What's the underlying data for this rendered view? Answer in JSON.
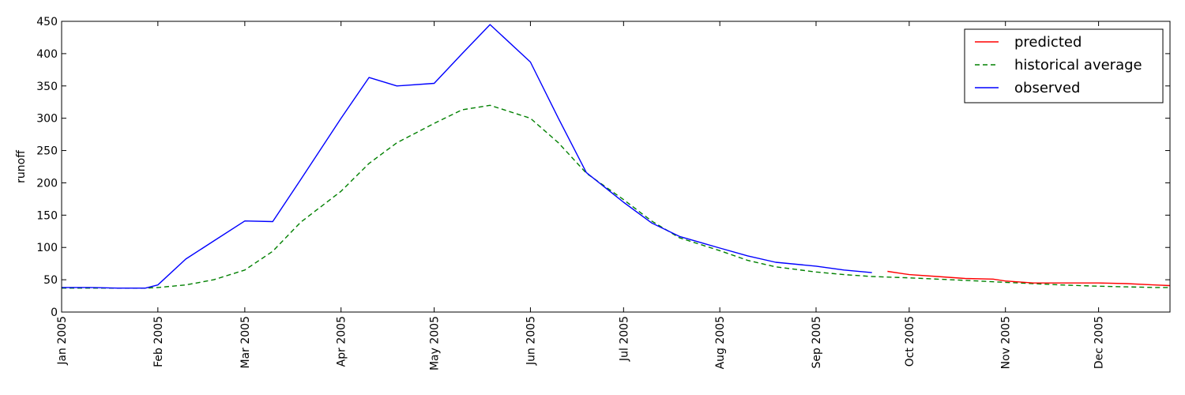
{
  "chart_data": {
    "type": "line",
    "title": "",
    "xlabel": "",
    "ylabel": "runoff",
    "ylim": [
      0,
      450
    ],
    "xlim": [
      "2005-01-01",
      "2005-12-24"
    ],
    "y_ticks": [
      0,
      50,
      100,
      150,
      200,
      250,
      300,
      350,
      400,
      450
    ],
    "x_ticks": [
      {
        "date": "2005-01-01",
        "label": "Jan 2005"
      },
      {
        "date": "2005-02-01",
        "label": "Feb 2005"
      },
      {
        "date": "2005-03-01",
        "label": "Mar 2005"
      },
      {
        "date": "2005-04-01",
        "label": "Apr 2005"
      },
      {
        "date": "2005-05-01",
        "label": "May 2005"
      },
      {
        "date": "2005-06-01",
        "label": "Jun 2005"
      },
      {
        "date": "2005-07-01",
        "label": "Jul 2005"
      },
      {
        "date": "2005-08-01",
        "label": "Aug 2005"
      },
      {
        "date": "2005-09-01",
        "label": "Sep 2005"
      },
      {
        "date": "2005-10-01",
        "label": "Oct 2005"
      },
      {
        "date": "2005-11-01",
        "label": "Nov 2005"
      },
      {
        "date": "2005-12-01",
        "label": "Dec 2005"
      }
    ],
    "x_label_rotation": "vertical",
    "grid": false,
    "legend_position": "top-right",
    "series": [
      {
        "name": "predicted",
        "color": "#ff0000",
        "style": "solid",
        "points": [
          [
            "2005-09-24",
            63
          ],
          [
            "2005-10-01",
            58
          ],
          [
            "2005-10-10",
            55
          ],
          [
            "2005-10-19",
            52
          ],
          [
            "2005-10-28",
            51
          ],
          [
            "2005-11-01",
            48
          ],
          [
            "2005-11-10",
            45
          ],
          [
            "2005-11-19",
            45
          ],
          [
            "2005-11-28",
            45
          ],
          [
            "2005-12-01",
            45
          ],
          [
            "2005-12-10",
            44
          ],
          [
            "2005-12-19",
            42
          ],
          [
            "2005-12-24",
            41
          ]
        ]
      },
      {
        "name": "historical average",
        "color": "#008000",
        "style": "dashed",
        "points": [
          [
            "2005-01-01",
            37
          ],
          [
            "2005-01-10",
            37
          ],
          [
            "2005-01-19",
            37
          ],
          [
            "2005-01-28",
            37
          ],
          [
            "2005-02-01",
            38
          ],
          [
            "2005-02-10",
            42
          ],
          [
            "2005-02-19",
            50
          ],
          [
            "2005-03-01",
            65
          ],
          [
            "2005-03-10",
            94
          ],
          [
            "2005-03-19",
            139
          ],
          [
            "2005-04-01",
            187
          ],
          [
            "2005-04-10",
            230
          ],
          [
            "2005-04-19",
            262
          ],
          [
            "2005-05-01",
            292
          ],
          [
            "2005-05-10",
            313
          ],
          [
            "2005-05-19",
            320
          ],
          [
            "2005-06-01",
            300
          ],
          [
            "2005-06-10",
            262
          ],
          [
            "2005-06-19",
            215
          ],
          [
            "2005-07-01",
            174
          ],
          [
            "2005-07-10",
            141
          ],
          [
            "2005-07-19",
            115
          ],
          [
            "2005-08-01",
            95
          ],
          [
            "2005-08-10",
            80
          ],
          [
            "2005-08-19",
            70
          ],
          [
            "2005-09-01",
            62
          ],
          [
            "2005-09-10",
            58
          ],
          [
            "2005-09-19",
            55
          ],
          [
            "2005-10-01",
            53
          ],
          [
            "2005-10-10",
            51
          ],
          [
            "2005-10-19",
            49
          ],
          [
            "2005-11-01",
            46
          ],
          [
            "2005-11-10",
            44
          ],
          [
            "2005-11-19",
            42
          ],
          [
            "2005-12-01",
            40
          ],
          [
            "2005-12-10",
            39
          ],
          [
            "2005-12-19",
            38
          ],
          [
            "2005-12-24",
            38
          ]
        ]
      },
      {
        "name": "observed",
        "color": "#0000ff",
        "style": "solid",
        "points": [
          [
            "2005-01-01",
            38
          ],
          [
            "2005-01-10",
            38
          ],
          [
            "2005-01-19",
            37
          ],
          [
            "2005-01-28",
            37
          ],
          [
            "2005-02-01",
            42
          ],
          [
            "2005-02-10",
            82
          ],
          [
            "2005-02-19",
            110
          ],
          [
            "2005-03-01",
            141
          ],
          [
            "2005-03-10",
            140
          ],
          [
            "2005-03-19",
            205
          ],
          [
            "2005-04-01",
            300
          ],
          [
            "2005-04-10",
            363
          ],
          [
            "2005-04-19",
            350
          ],
          [
            "2005-05-01",
            354
          ],
          [
            "2005-05-10",
            400
          ],
          [
            "2005-05-19",
            445
          ],
          [
            "2005-06-01",
            387
          ],
          [
            "2005-06-10",
            300
          ],
          [
            "2005-06-19",
            216
          ],
          [
            "2005-07-01",
            170
          ],
          [
            "2005-07-10",
            138
          ],
          [
            "2005-07-19",
            117
          ],
          [
            "2005-08-01",
            99
          ],
          [
            "2005-08-10",
            87
          ],
          [
            "2005-08-19",
            77
          ],
          [
            "2005-09-01",
            71
          ],
          [
            "2005-09-10",
            65
          ],
          [
            "2005-09-19",
            61
          ]
        ]
      }
    ]
  }
}
